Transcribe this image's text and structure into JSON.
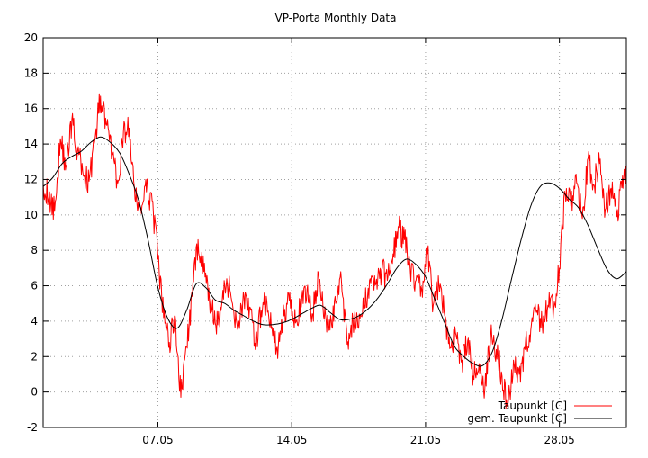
{
  "chart_data": {
    "type": "line",
    "title": "VP-Porta Monthly Data",
    "xlabel": "",
    "ylabel": "",
    "xlim": [
      1,
      31.5
    ],
    "ylim": [
      -2,
      20
    ],
    "grid": true,
    "legend_position": "bottom-right",
    "x_ticks": [
      {
        "value": 7,
        "label": "07.05"
      },
      {
        "value": 14,
        "label": "14.05"
      },
      {
        "value": 21,
        "label": "21.05"
      },
      {
        "value": 28,
        "label": "28.05"
      }
    ],
    "y_ticks": [
      -2,
      0,
      2,
      4,
      6,
      8,
      10,
      12,
      14,
      16,
      18,
      20
    ],
    "series": [
      {
        "name": "Taupunkt [C]",
        "color": "#ff0000",
        "style": "raw",
        "x": [
          1.0,
          1.3,
          1.6,
          1.9,
          2.2,
          2.5,
          2.8,
          3.1,
          3.4,
          3.7,
          4.0,
          4.3,
          4.6,
          4.9,
          5.2,
          5.5,
          5.8,
          6.1,
          6.4,
          6.7,
          7.0,
          7.3,
          7.6,
          7.9,
          8.2,
          8.5,
          8.8,
          9.1,
          9.4,
          9.7,
          10.0,
          10.3,
          10.6,
          10.9,
          11.2,
          11.5,
          11.8,
          12.1,
          12.4,
          12.7,
          13.0,
          13.3,
          13.6,
          13.9,
          14.2,
          14.5,
          14.8,
          15.1,
          15.4,
          15.7,
          16.0,
          16.3,
          16.6,
          16.9,
          17.2,
          17.5,
          17.8,
          18.1,
          18.4,
          18.7,
          19.0,
          19.3,
          19.6,
          19.9,
          20.2,
          20.5,
          20.8,
          21.1,
          21.4,
          21.7,
          22.0,
          22.3,
          22.6,
          22.9,
          23.2,
          23.5,
          23.8,
          24.1,
          24.4,
          24.7,
          25.0,
          25.3,
          25.6,
          25.9,
          26.2,
          26.5,
          26.8,
          27.1,
          27.4,
          27.7,
          28.0,
          28.3,
          28.6,
          28.9,
          29.2,
          29.5,
          29.8,
          30.1,
          30.4,
          30.7,
          31.0,
          31.3,
          31.5
        ],
        "values": [
          11.8,
          11.0,
          10.2,
          14.3,
          12.8,
          15.4,
          13.6,
          12.2,
          11.9,
          14.2,
          16.7,
          15.1,
          13.4,
          11.8,
          14.7,
          14.9,
          10.9,
          10.4,
          11.3,
          10.8,
          7.5,
          4.2,
          2.8,
          4.3,
          -0.3,
          2.6,
          5.4,
          8.6,
          6.8,
          5.1,
          3.9,
          4.6,
          6.4,
          5.0,
          3.7,
          5.4,
          4.8,
          2.4,
          4.6,
          5.1,
          3.2,
          2.6,
          4.3,
          5.6,
          3.9,
          4.8,
          5.8,
          4.4,
          6.7,
          4.1,
          3.5,
          5.0,
          6.3,
          2.7,
          4.1,
          3.6,
          4.9,
          6.4,
          6.1,
          6.9,
          6.3,
          7.8,
          9.3,
          8.6,
          6.9,
          6.3,
          5.8,
          7.8,
          4.9,
          6.0,
          4.3,
          2.5,
          3.2,
          1.8,
          2.9,
          0.9,
          1.6,
          0.2,
          3.1,
          2.4,
          0.9,
          -0.8,
          1.8,
          1.0,
          2.4,
          3.5,
          4.5,
          3.8,
          4.9,
          4.7,
          7.0,
          11.2,
          10.5,
          11.8,
          9.8,
          13.2,
          11.7,
          12.9,
          10.3,
          11.5,
          9.9,
          12.2,
          12.6
        ]
      },
      {
        "name": "gem. Taupunkt [C]",
        "color": "#000000",
        "style": "smooth",
        "x": [
          1.0,
          1.5,
          2.0,
          2.5,
          3.0,
          3.5,
          4.0,
          4.5,
          5.0,
          5.5,
          6.0,
          6.5,
          7.0,
          7.5,
          8.0,
          8.5,
          9.0,
          9.5,
          10.0,
          10.5,
          11.0,
          11.5,
          12.0,
          12.5,
          13.0,
          13.5,
          14.0,
          14.5,
          15.0,
          15.5,
          16.0,
          16.5,
          17.0,
          17.5,
          18.0,
          18.5,
          19.0,
          19.5,
          20.0,
          20.5,
          21.0,
          21.5,
          22.0,
          22.5,
          23.0,
          23.5,
          24.0,
          24.5,
          25.0,
          25.5,
          26.0,
          26.5,
          27.0,
          27.5,
          28.0,
          28.5,
          29.0,
          29.5,
          30.0,
          30.5,
          31.0,
          31.5
        ],
        "values": [
          11.6,
          12.1,
          12.9,
          13.3,
          13.6,
          14.1,
          14.4,
          14.1,
          13.5,
          12.3,
          10.8,
          8.5,
          5.9,
          4.2,
          3.6,
          4.6,
          6.1,
          5.9,
          5.2,
          5.0,
          4.6,
          4.3,
          4.0,
          3.8,
          3.8,
          3.9,
          4.1,
          4.4,
          4.7,
          4.9,
          4.5,
          4.1,
          4.1,
          4.3,
          4.7,
          5.3,
          6.1,
          7.0,
          7.5,
          7.2,
          6.5,
          5.2,
          3.9,
          2.6,
          2.0,
          1.6,
          1.5,
          2.3,
          4.1,
          6.4,
          8.6,
          10.5,
          11.6,
          11.8,
          11.5,
          10.9,
          10.4,
          9.4,
          8.1,
          6.9,
          6.4,
          6.8
        ]
      }
    ]
  }
}
